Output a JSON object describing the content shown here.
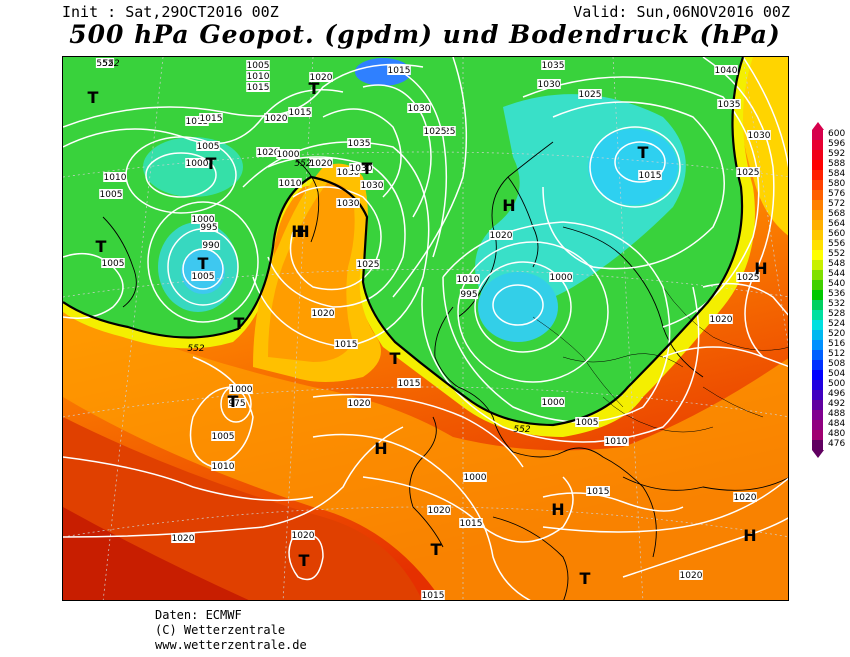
{
  "header": {
    "init": "Init : Sat,29OCT2016 00Z",
    "valid": "Valid: Sun,06NOV2016 00Z",
    "title": "500 hPa Geopot. (gpdm) und Bodendruck (hPa)"
  },
  "legend": {
    "levels": [
      "600",
      "596",
      "592",
      "588",
      "584",
      "580",
      "576",
      "572",
      "568",
      "564",
      "560",
      "556",
      "552",
      "548",
      "544",
      "540",
      "536",
      "532",
      "528",
      "524",
      "520",
      "516",
      "512",
      "508",
      "504",
      "500",
      "496",
      "492",
      "488",
      "484",
      "480",
      "476"
    ],
    "colors": [
      "#d6004c",
      "#e80030",
      "#f00018",
      "#ff0000",
      "#ff2000",
      "#ff4000",
      "#ff6000",
      "#ff8000",
      "#ff9a00",
      "#ffb000",
      "#ffc800",
      "#ffe000",
      "#ffff00",
      "#c8f000",
      "#80e000",
      "#40d000",
      "#00c800",
      "#00d060",
      "#00e0a0",
      "#00e0e0",
      "#00b8f0",
      "#0090ff",
      "#0060ff",
      "#0030ff",
      "#0000ff",
      "#2000e0",
      "#4000c0",
      "#6000a0",
      "#800090",
      "#900080",
      "#a00070",
      "#600060"
    ]
  },
  "map": {
    "pressure_labels": [
      {
        "t": "552"
      },
      {
        "t": "1005"
      },
      {
        "t": "1010"
      },
      {
        "t": "1015"
      },
      {
        "t": "1020"
      },
      {
        "t": "1015"
      },
      {
        "t": "1035"
      },
      {
        "t": "1030"
      },
      {
        "t": "1025"
      },
      {
        "t": "1040"
      },
      {
        "t": "1035"
      },
      {
        "t": "1030"
      },
      {
        "t": "1025"
      },
      {
        "t": "1030"
      },
      {
        "t": "1020"
      },
      {
        "t": "1015"
      },
      {
        "t": "1025"
      },
      {
        "t": "1025"
      },
      {
        "t": "1030"
      },
      {
        "t": "1035"
      },
      {
        "t": "1020"
      },
      {
        "t": "1015"
      },
      {
        "t": "1005"
      },
      {
        "t": "1000"
      },
      {
        "t": "1010"
      },
      {
        "t": "1005"
      },
      {
        "t": "1000"
      },
      {
        "t": "995"
      },
      {
        "t": "990"
      },
      {
        "t": "1005"
      },
      {
        "t": "1020"
      },
      {
        "t": "1015"
      },
      {
        "t": "1030"
      },
      {
        "t": "1030"
      },
      {
        "t": "1030"
      },
      {
        "t": "1025"
      },
      {
        "t": "1020"
      },
      {
        "t": "1000"
      },
      {
        "t": "1010"
      },
      {
        "t": "1005"
      },
      {
        "t": "1010"
      },
      {
        "t": "995"
      },
      {
        "t": "1020"
      },
      {
        "t": "1000"
      },
      {
        "t": "1025"
      },
      {
        "t": "1020"
      },
      {
        "t": "1015"
      },
      {
        "t": "1015"
      },
      {
        "t": "1000"
      },
      {
        "t": "1000"
      },
      {
        "t": "1005"
      },
      {
        "t": "1010"
      },
      {
        "t": "1020"
      },
      {
        "t": "1015"
      },
      {
        "t": "1010"
      },
      {
        "t": "1000"
      },
      {
        "t": "975"
      },
      {
        "t": "1005"
      },
      {
        "t": "1010"
      },
      {
        "t": "1020"
      },
      {
        "t": "1020"
      },
      {
        "t": "1015"
      },
      {
        "t": "1015"
      },
      {
        "t": "1020"
      },
      {
        "t": "1020"
      },
      {
        "t": "1020"
      },
      {
        "t": "1015"
      },
      {
        "t": "1015"
      }
    ],
    "geopot_552_labels": [
      "552",
      "552",
      "552",
      "552"
    ],
    "systems": [
      {
        "t": "T"
      },
      {
        "t": "T"
      },
      {
        "t": "T"
      },
      {
        "t": "T"
      },
      {
        "t": "T"
      },
      {
        "t": "T"
      },
      {
        "t": "H"
      },
      {
        "t": "H"
      },
      {
        "t": "T"
      },
      {
        "t": "T"
      },
      {
        "t": "H"
      },
      {
        "t": "T"
      },
      {
        "t": "T"
      },
      {
        "t": "T"
      },
      {
        "t": "H"
      },
      {
        "t": "T"
      },
      {
        "t": "T"
      },
      {
        "t": "H"
      },
      {
        "t": "H"
      },
      {
        "t": "H"
      }
    ]
  },
  "credits": {
    "line1": "Daten: ECMWF",
    "line2": "(C) Wetterzentrale",
    "line3": "www.wetterzentrale.de"
  }
}
